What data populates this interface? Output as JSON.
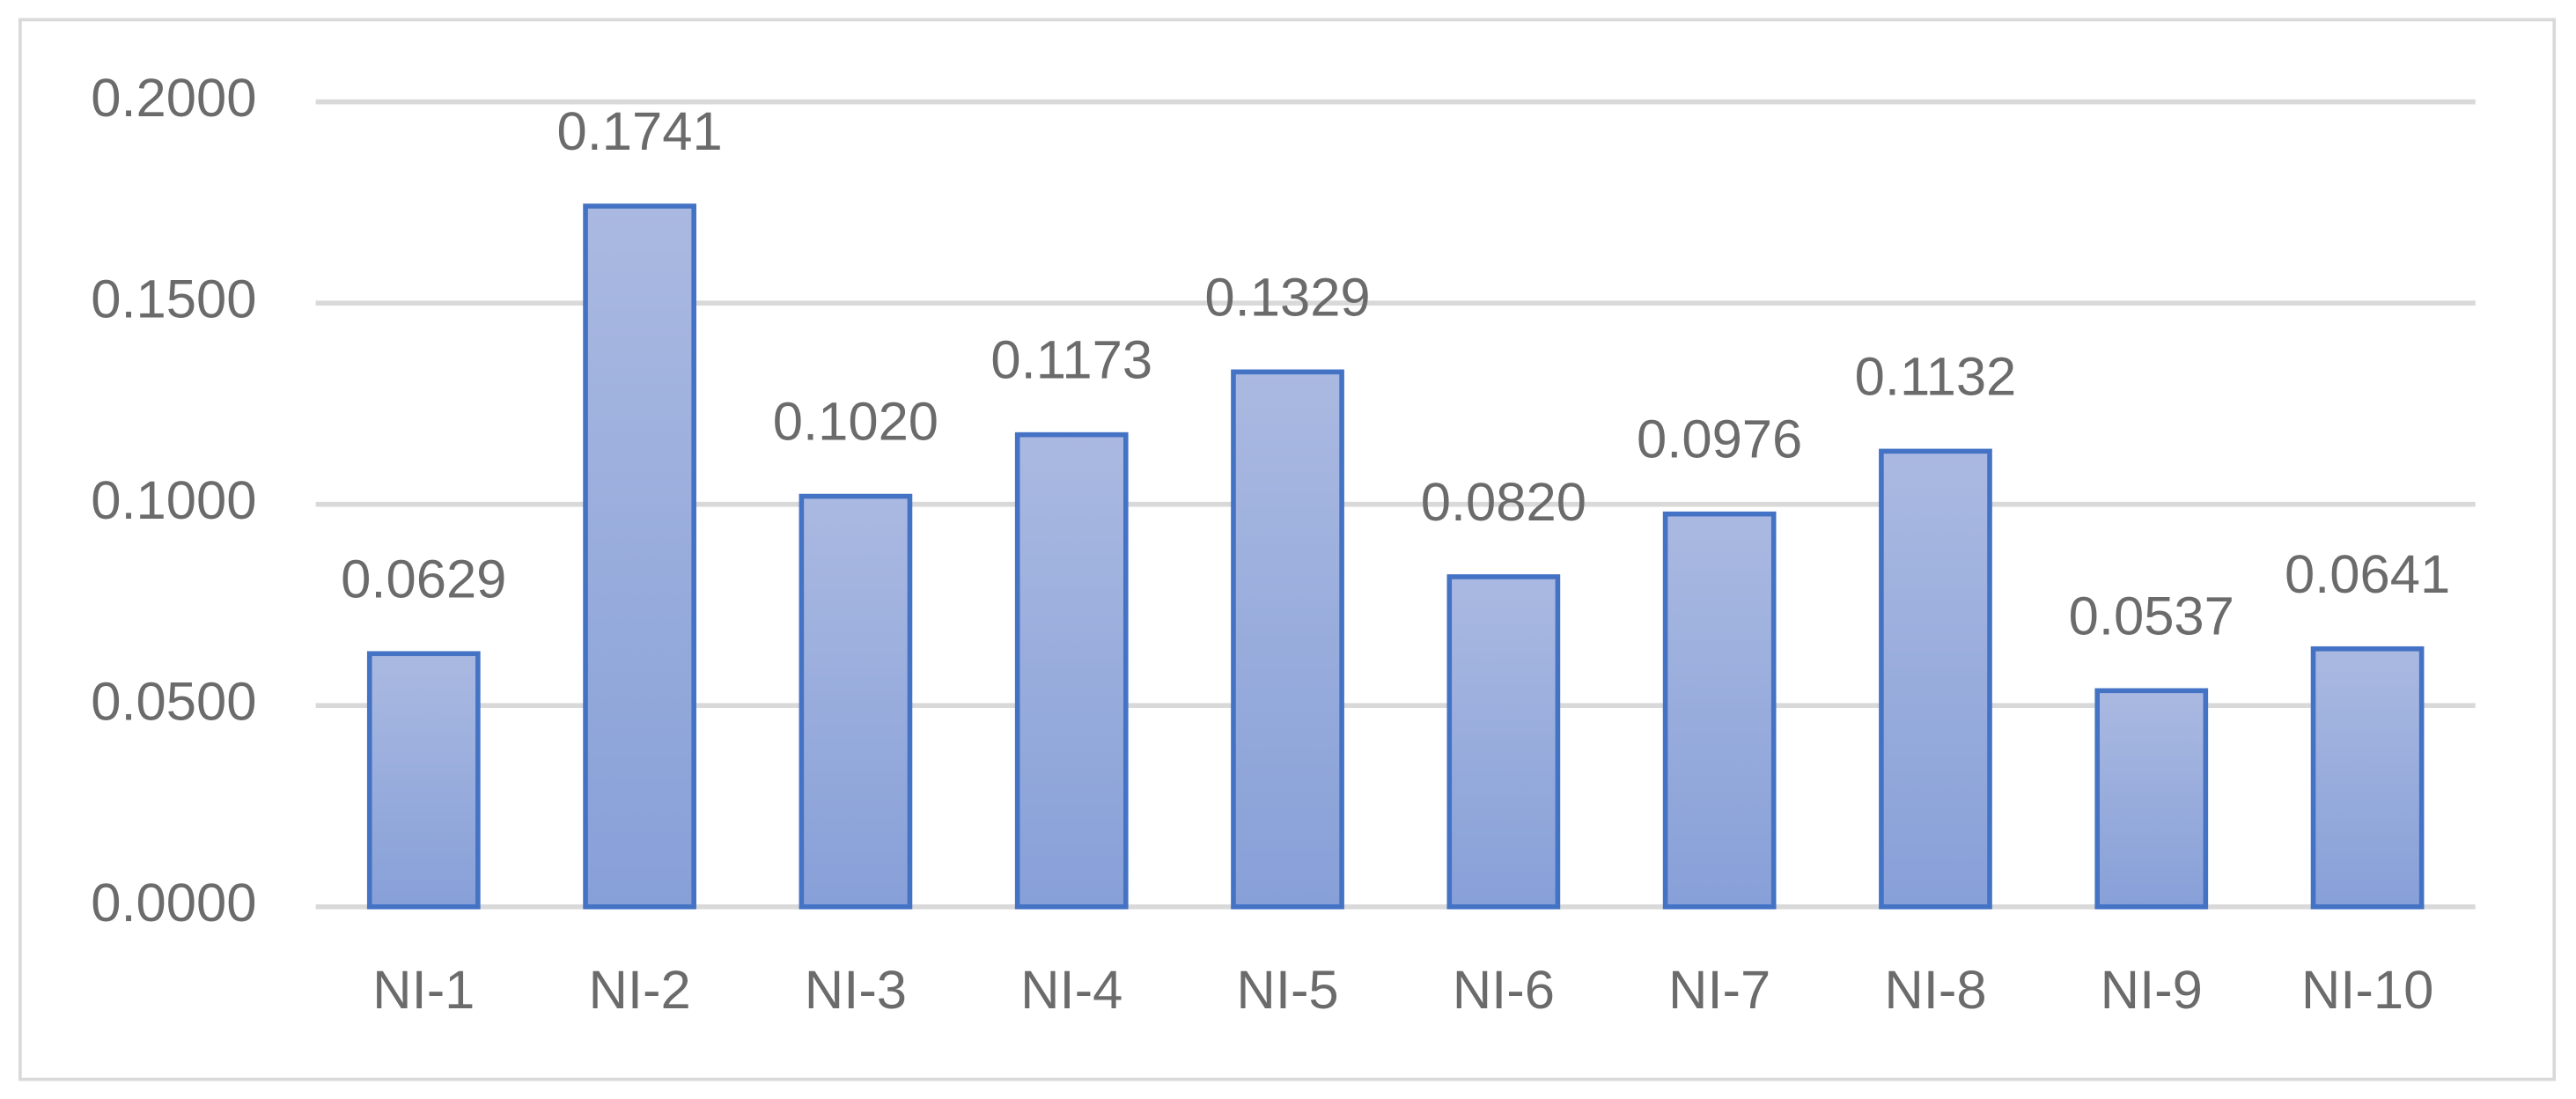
{
  "chart_data": {
    "type": "bar",
    "categories": [
      "NI-1",
      "NI-2",
      "NI-3",
      "NI-4",
      "NI-5",
      "NI-6",
      "NI-7",
      "NI-8",
      "NI-9",
      "NI-10"
    ],
    "values": [
      0.0629,
      0.1741,
      0.102,
      0.1173,
      0.1329,
      0.082,
      0.0976,
      0.1132,
      0.0537,
      0.0641
    ],
    "value_labels": [
      "0.0629",
      "0.1741",
      "0.1020",
      "0.1173",
      "0.1329",
      "0.0820",
      "0.0976",
      "0.1132",
      "0.0537",
      "0.0641"
    ],
    "color": "#4472c4",
    "ylim": [
      0,
      0.2
    ],
    "yticks": [
      {
        "value": 0,
        "label": "0.0000"
      },
      {
        "value": 0.05,
        "label": "0.0500"
      },
      {
        "value": 0.1,
        "label": "0.1000"
      },
      {
        "value": 0.15,
        "label": "0.1500"
      },
      {
        "value": 0.2,
        "label": "0.2000"
      }
    ],
    "grid": true
  }
}
